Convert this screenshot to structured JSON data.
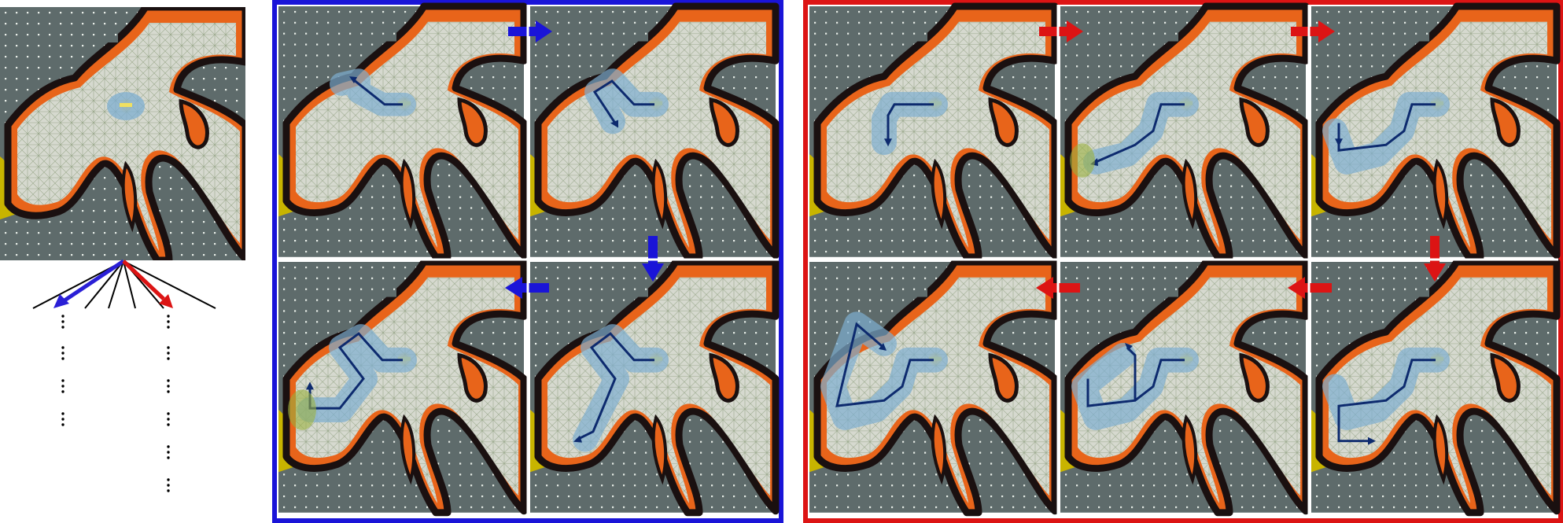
{
  "colors": {
    "blue": "#1a14d8",
    "red": "#dc1414",
    "wall": "#5e6b6b",
    "floor": "#d6d9cf",
    "fire_outer": "#e8641a",
    "fire_core": "#1a1010",
    "yellow": "#c8b400",
    "path": "#0d2a6e",
    "frontier": "#7eaed0",
    "goal_zone": "#9ab040"
  },
  "icons": {
    "seq_arrow": "block-arrow-icon",
    "path_end": "arrowhead-icon",
    "continuation": "vertical-ellipsis-icon"
  },
  "panels": {
    "root": {
      "name": "root-map"
    },
    "blue_sequence": {
      "count": 4,
      "order": [
        "right",
        "down",
        "left"
      ]
    },
    "red_sequence": {
      "count": 6,
      "order": [
        "right",
        "right",
        "down",
        "left",
        "left"
      ]
    }
  }
}
